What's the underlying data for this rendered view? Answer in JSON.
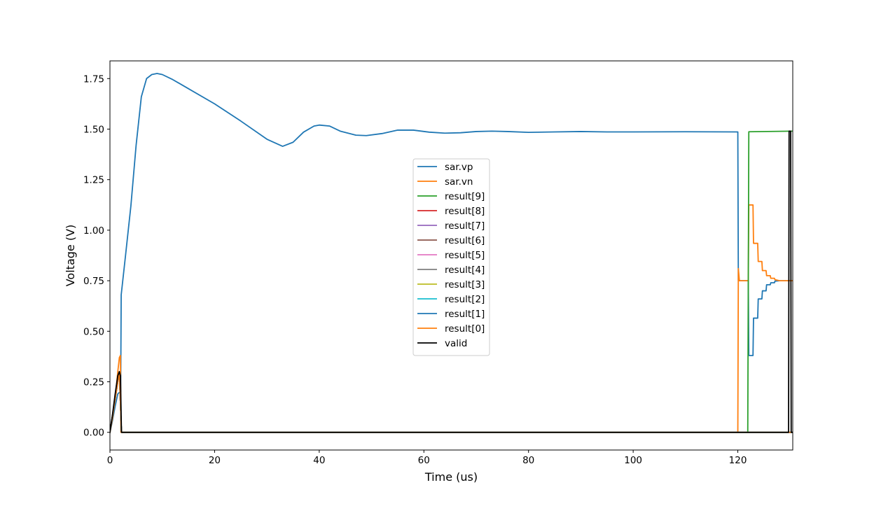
{
  "chart_data": {
    "type": "line",
    "title": "",
    "xlabel": "Time (us)",
    "ylabel": "Voltage (V)",
    "xlim": [
      0,
      130.5
    ],
    "ylim": [
      -0.0875,
      1.8375
    ],
    "xticks": [
      0,
      20,
      40,
      60,
      80,
      100,
      120
    ],
    "yticks": [
      0.0,
      0.25,
      0.5,
      0.75,
      1.0,
      1.25,
      1.5,
      1.75
    ],
    "xtick_labels": [
      "0",
      "20",
      "40",
      "60",
      "80",
      "100",
      "120"
    ],
    "ytick_labels": [
      "0.00",
      "0.25",
      "0.50",
      "0.75",
      "1.00",
      "1.25",
      "1.50",
      "1.75"
    ],
    "grid": false,
    "legend_position": "center",
    "series": [
      {
        "name": "sar.vp",
        "color": "#1f77b4",
        "points": [
          [
            0,
            0
          ],
          [
            0.5,
            0.06
          ],
          [
            1.0,
            0.13
          ],
          [
            1.5,
            0.19
          ],
          [
            1.9,
            0.2
          ],
          [
            2.05,
            0.2
          ],
          [
            2.15,
            0.68
          ],
          [
            3,
            0.88
          ],
          [
            4,
            1.12
          ],
          [
            5,
            1.42
          ],
          [
            6,
            1.66
          ],
          [
            7,
            1.75
          ],
          [
            8,
            1.77
          ],
          [
            9,
            1.775
          ],
          [
            10,
            1.77
          ],
          [
            12,
            1.745
          ],
          [
            15,
            1.7
          ],
          [
            20,
            1.625
          ],
          [
            25,
            1.54
          ],
          [
            30,
            1.45
          ],
          [
            33,
            1.415
          ],
          [
            35,
            1.435
          ],
          [
            37,
            1.485
          ],
          [
            39,
            1.515
          ],
          [
            40,
            1.52
          ],
          [
            42,
            1.515
          ],
          [
            44,
            1.49
          ],
          [
            47,
            1.47
          ],
          [
            49,
            1.468
          ],
          [
            52,
            1.478
          ],
          [
            55,
            1.495
          ],
          [
            58,
            1.495
          ],
          [
            61,
            1.485
          ],
          [
            64,
            1.48
          ],
          [
            67,
            1.482
          ],
          [
            70,
            1.488
          ],
          [
            73,
            1.49
          ],
          [
            76,
            1.488
          ],
          [
            80,
            1.484
          ],
          [
            85,
            1.486
          ],
          [
            90,
            1.488
          ],
          [
            95,
            1.486
          ],
          [
            100,
            1.486
          ],
          [
            110,
            1.487
          ],
          [
            120,
            1.486
          ],
          [
            120.1,
            0.75
          ],
          [
            122,
            0.75
          ],
          [
            122.1,
            0.38
          ],
          [
            122.9,
            0.38
          ],
          [
            123.0,
            0.565
          ],
          [
            123.8,
            0.565
          ],
          [
            123.9,
            0.66
          ],
          [
            124.6,
            0.66
          ],
          [
            124.7,
            0.7
          ],
          [
            125.4,
            0.7
          ],
          [
            125.5,
            0.73
          ],
          [
            126.2,
            0.73
          ],
          [
            126.3,
            0.74
          ],
          [
            127.0,
            0.74
          ],
          [
            127.1,
            0.748
          ],
          [
            128,
            0.75
          ],
          [
            130.5,
            0.75
          ]
        ]
      },
      {
        "name": "sar.vn",
        "color": "#ff7f0e",
        "points": [
          [
            0,
            0
          ],
          [
            0.5,
            0.07
          ],
          [
            1.0,
            0.17
          ],
          [
            1.5,
            0.3
          ],
          [
            1.8,
            0.37
          ],
          [
            2.0,
            0.38
          ],
          [
            2.1,
            0.0
          ],
          [
            120.0,
            0.0
          ],
          [
            120.1,
            0.81
          ],
          [
            120.3,
            0.75
          ],
          [
            122,
            0.75
          ],
          [
            122.1,
            1.125
          ],
          [
            122.9,
            1.125
          ],
          [
            123.0,
            0.935
          ],
          [
            123.8,
            0.935
          ],
          [
            123.9,
            0.845
          ],
          [
            124.6,
            0.845
          ],
          [
            124.7,
            0.8
          ],
          [
            125.4,
            0.8
          ],
          [
            125.5,
            0.775
          ],
          [
            126.2,
            0.775
          ],
          [
            126.3,
            0.762
          ],
          [
            127.0,
            0.762
          ],
          [
            127.1,
            0.755
          ],
          [
            128,
            0.75
          ],
          [
            130.5,
            0.75
          ]
        ]
      },
      {
        "name": "result[9]",
        "color": "#2ca02c",
        "points": [
          [
            0,
            0
          ],
          [
            1.8,
            0.3
          ],
          [
            2.2,
            0.0
          ],
          [
            121.9,
            0.0
          ],
          [
            122.1,
            1.487
          ],
          [
            130.5,
            1.49
          ]
        ]
      },
      {
        "name": "result[8]",
        "color": "#d62728",
        "points": [
          [
            0,
            0
          ],
          [
            1.8,
            0.3
          ],
          [
            2.2,
            0.0
          ],
          [
            130.5,
            0.0
          ]
        ]
      },
      {
        "name": "result[7]",
        "color": "#9467bd",
        "points": [
          [
            0,
            0
          ],
          [
            1.8,
            0.3
          ],
          [
            2.2,
            0.0
          ],
          [
            130.5,
            0.0
          ]
        ]
      },
      {
        "name": "result[6]",
        "color": "#8c564b",
        "points": [
          [
            0,
            0
          ],
          [
            1.8,
            0.3
          ],
          [
            2.2,
            0.0
          ],
          [
            130.5,
            0.0
          ]
        ]
      },
      {
        "name": "result[5]",
        "color": "#e377c2",
        "points": [
          [
            0,
            0
          ],
          [
            1.8,
            0.3
          ],
          [
            2.2,
            0.0
          ],
          [
            130.5,
            0.0
          ]
        ]
      },
      {
        "name": "result[4]",
        "color": "#7f7f7f",
        "points": [
          [
            0,
            0
          ],
          [
            1.8,
            0.3
          ],
          [
            2.2,
            0.0
          ],
          [
            130.5,
            0.0
          ]
        ]
      },
      {
        "name": "result[3]",
        "color": "#bcbd22",
        "points": [
          [
            0,
            0
          ],
          [
            1.8,
            0.3
          ],
          [
            2.2,
            0.0
          ],
          [
            130.5,
            0.0
          ]
        ]
      },
      {
        "name": "result[2]",
        "color": "#17becf",
        "points": [
          [
            0,
            0
          ],
          [
            1.8,
            0.3
          ],
          [
            2.2,
            0.0
          ],
          [
            130.5,
            0.0
          ]
        ]
      },
      {
        "name": "result[1]",
        "color": "#1f77b4",
        "points": [
          [
            0,
            0
          ],
          [
            1.8,
            0.3
          ],
          [
            2.2,
            0.0
          ],
          [
            130.5,
            0.0
          ]
        ]
      },
      {
        "name": "result[0]",
        "color": "#ff7f0e",
        "points": [
          [
            0,
            0
          ],
          [
            1.8,
            0.3
          ],
          [
            2.2,
            0.0
          ],
          [
            130.5,
            0.0
          ]
        ]
      },
      {
        "name": "valid",
        "color": "#000000",
        "points": [
          [
            0,
            0
          ],
          [
            0.5,
            0.09
          ],
          [
            1.0,
            0.19
          ],
          [
            1.5,
            0.28
          ],
          [
            1.8,
            0.3
          ],
          [
            2.0,
            0.28
          ],
          [
            2.2,
            0.0
          ],
          [
            129.7,
            0.0
          ],
          [
            129.8,
            1.49
          ],
          [
            130.1,
            1.49
          ],
          [
            130.2,
            0.0
          ],
          [
            130.5,
            0.0
          ]
        ]
      }
    ]
  }
}
